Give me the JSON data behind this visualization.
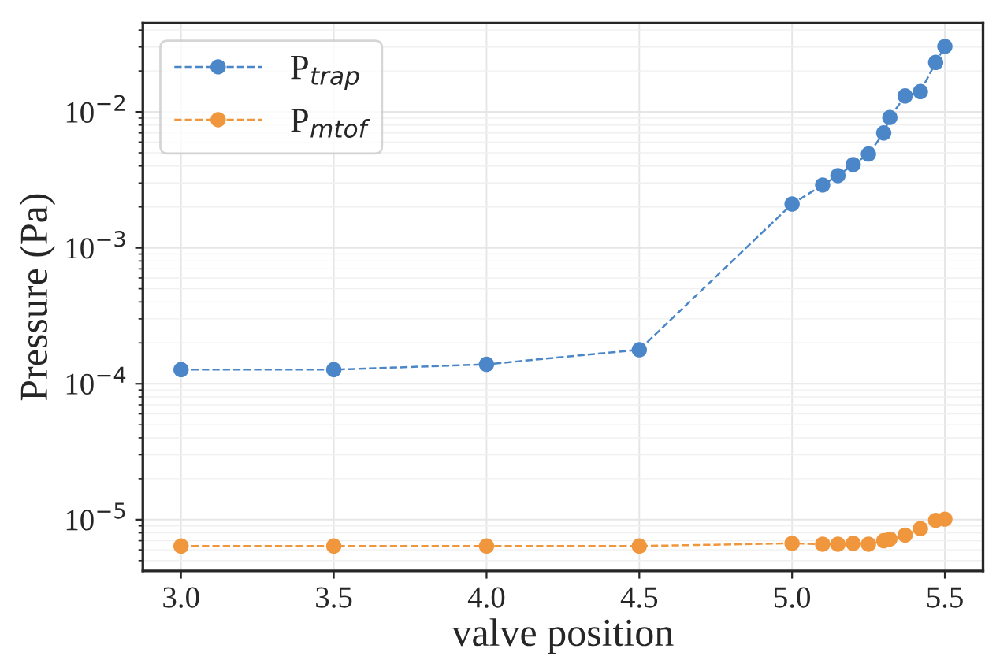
{
  "chart_data": {
    "type": "line",
    "xlabel": "valve position",
    "ylabel": "Pressure (Pa)",
    "log": "y",
    "grid": true,
    "legend": "top left",
    "marker": "circle",
    "line_style": "dashed",
    "xlim": [
      2.875,
      5.625
    ],
    "xticks": [
      {
        "value": 3.0,
        "label": "3.0"
      },
      {
        "value": 3.5,
        "label": "3.5"
      },
      {
        "value": 4.0,
        "label": "4.0"
      },
      {
        "value": 4.5,
        "label": "4.5"
      },
      {
        "value": 5.0,
        "label": "5.0"
      },
      {
        "value": 5.5,
        "label": "5.5"
      }
    ],
    "ylim": [
      4.2e-06,
      0.045
    ],
    "yticks": [
      {
        "value": 1e-05,
        "label": "10$^{−5}$"
      },
      {
        "value": 0.0001,
        "label": "10$^{−4}$"
      },
      {
        "value": 0.001,
        "label": "10$^{−3}$"
      },
      {
        "value": 0.01,
        "label": "10$^{−2}$"
      }
    ],
    "x": [
      3.0,
      3.5,
      4.0,
      4.5,
      5.0,
      5.1,
      5.15,
      5.2,
      5.25,
      5.3,
      5.32,
      5.37,
      5.42,
      5.47,
      5.5
    ],
    "series": [
      {
        "name": "P$_{trap}$",
        "color": "#4a86c8",
        "values": [
          0.000127,
          0.000127,
          0.000139,
          0.000178,
          0.0021,
          0.0029,
          0.0034,
          0.0041,
          0.0049,
          0.007,
          0.0091,
          0.0131,
          0.0141,
          0.0231,
          0.0303
        ]
      },
      {
        "name": "P$_{mtof}$",
        "color": "#f0963c",
        "values": [
          6.4e-06,
          6.4e-06,
          6.4e-06,
          6.4e-06,
          6.7e-06,
          6.6e-06,
          6.6e-06,
          6.7e-06,
          6.6e-06,
          7e-06,
          7.2e-06,
          7.7e-06,
          8.6e-06,
          9.9e-06,
          1.01e-05
        ]
      }
    ]
  }
}
